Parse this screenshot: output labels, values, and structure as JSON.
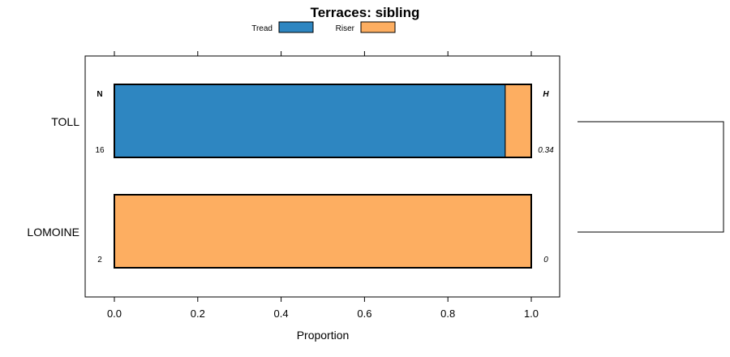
{
  "chart_data": {
    "type": "bar",
    "orientation": "horizontal",
    "stacked": true,
    "title": "Terraces: sibling",
    "xlabel": "Proportion",
    "ylabel": "",
    "xlim": [
      -0.07,
      1.07
    ],
    "xticks": [
      0.0,
      0.2,
      0.4,
      0.6,
      0.8,
      1.0
    ],
    "xtick_labels": [
      "0.0",
      "0.2",
      "0.4",
      "0.6",
      "0.8",
      "1.0"
    ],
    "legend_position": "top",
    "categories": [
      "TOLL",
      "LOMOINE"
    ],
    "series": [
      {
        "name": "Tread",
        "color": "#2e86c1",
        "values": [
          0.9375,
          0.0
        ]
      },
      {
        "name": "Riser",
        "color": "#fdae61",
        "values": [
          0.0625,
          1.0
        ]
      }
    ],
    "n_header": "N",
    "h_header": "H",
    "n_values": [
      "16",
      "2"
    ],
    "h_values": [
      "0.34",
      "0"
    ],
    "dendrogram": {
      "leaves": [
        "TOLL",
        "LOMOINE"
      ]
    }
  }
}
